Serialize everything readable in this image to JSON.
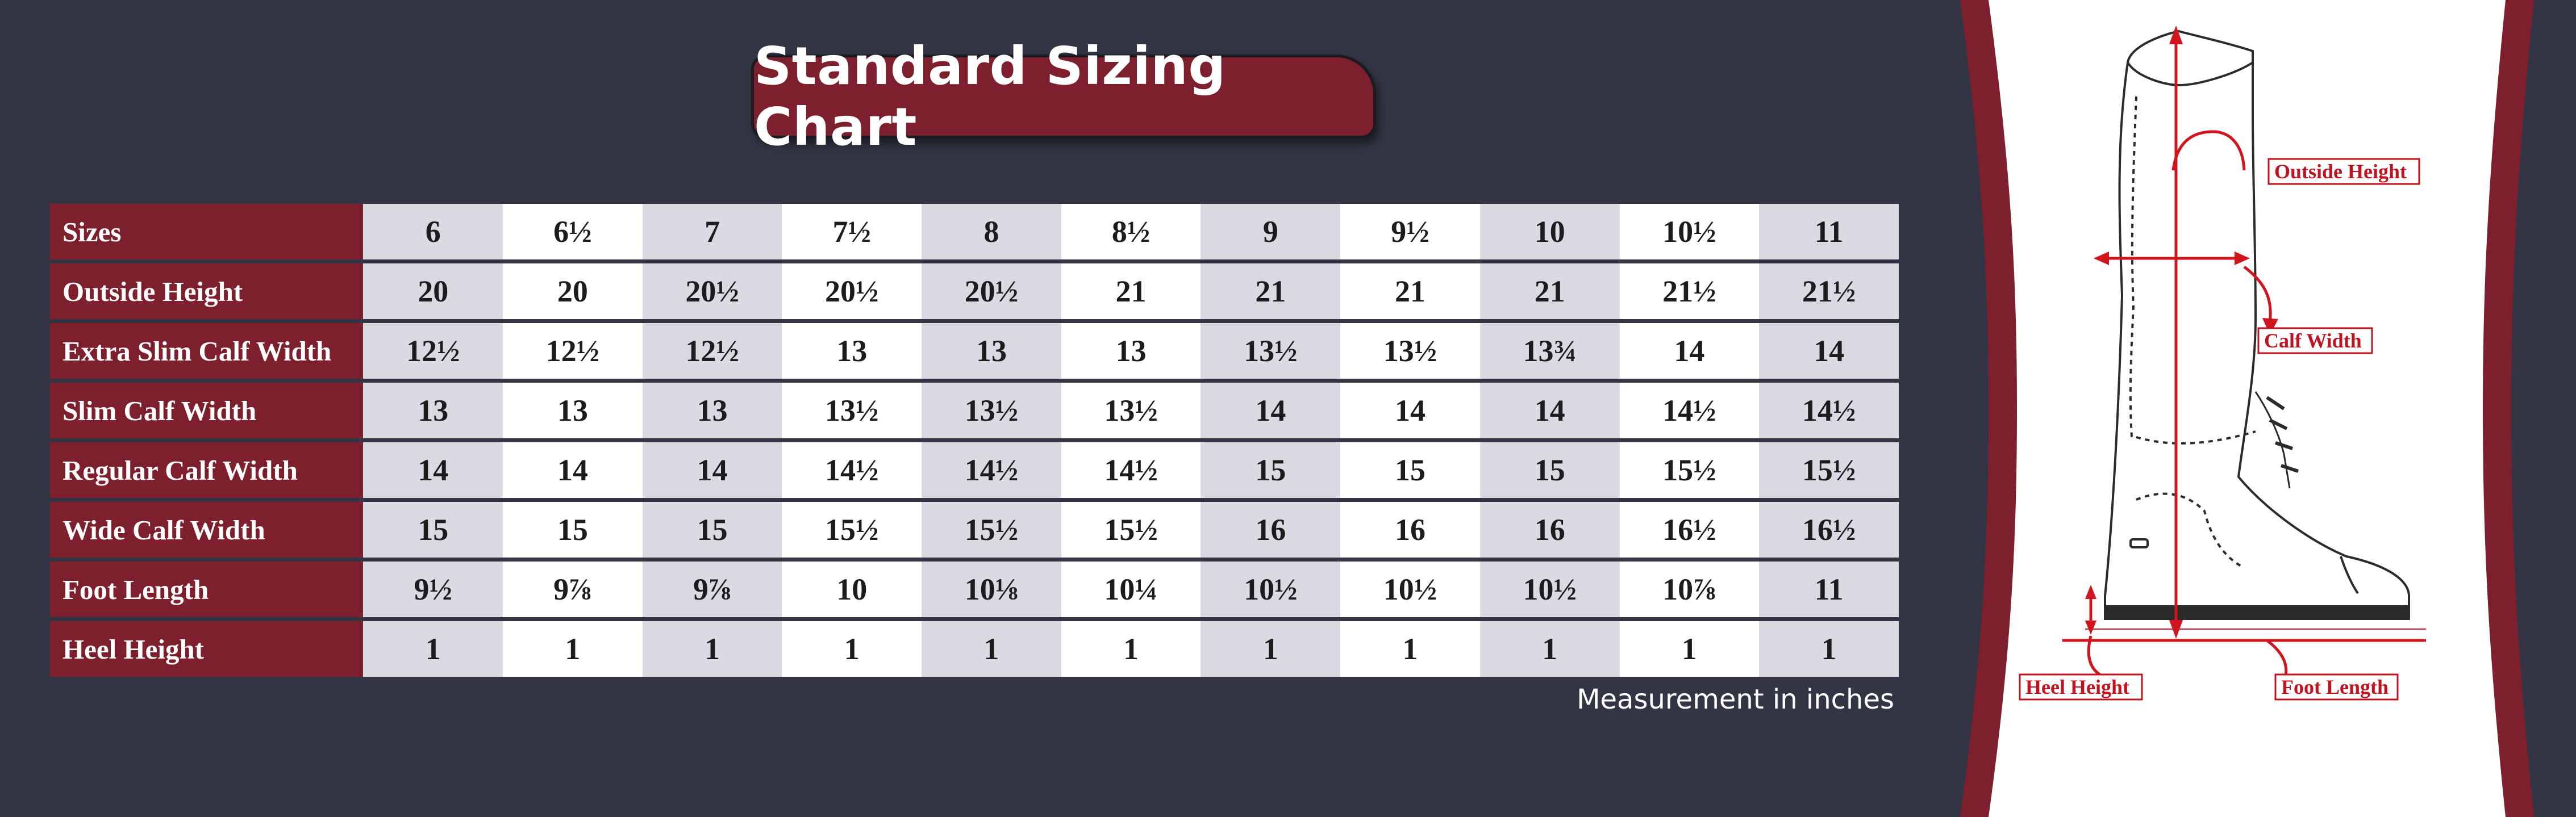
{
  "title": "Standard Sizing Chart",
  "measurement_note": "Measurement in inches",
  "table": {
    "rows": [
      {
        "label": "Sizes",
        "values": [
          "6",
          "6½",
          "7",
          "7½",
          "8",
          "8½",
          "9",
          "9½",
          "10",
          "10½",
          "11"
        ]
      },
      {
        "label": "Outside Height",
        "values": [
          "20",
          "20",
          "20½",
          "20½",
          "20½",
          "21",
          "21",
          "21",
          "21",
          "21½",
          "21½"
        ]
      },
      {
        "label": "Extra Slim Calf Width",
        "values": [
          "12½",
          "12½",
          "12½",
          "13",
          "13",
          "13",
          "13½",
          "13½",
          "13¾",
          "14",
          "14"
        ]
      },
      {
        "label": "Slim Calf Width",
        "values": [
          "13",
          "13",
          "13",
          "13½",
          "13½",
          "13½",
          "14",
          "14",
          "14",
          "14½",
          "14½"
        ]
      },
      {
        "label": "Regular Calf Width",
        "values": [
          "14",
          "14",
          "14",
          "14½",
          "14½",
          "14½",
          "15",
          "15",
          "15",
          "15½",
          "15½"
        ]
      },
      {
        "label": "Wide Calf Width",
        "values": [
          "15",
          "15",
          "15",
          "15½",
          "15½",
          "15½",
          "16",
          "16",
          "16",
          "16½",
          "16½"
        ]
      },
      {
        "label": "Foot Length",
        "values": [
          "9½",
          "9⅞",
          "9⅞",
          "10",
          "10⅛",
          "10¼",
          "10½",
          "10½",
          "10½",
          "10⅞",
          "11"
        ]
      },
      {
        "label": "Heel Height",
        "values": [
          "1",
          "1",
          "1",
          "1",
          "1",
          "1",
          "1",
          "1",
          "1",
          "1",
          "1"
        ]
      }
    ]
  },
  "boot_labels": {
    "outside_height": "Outside Height",
    "calf_width": "Calf Width",
    "heel_height": "Heel Height",
    "foot_length": "Foot Length"
  },
  "colors": {
    "background": "#333545",
    "accent": "#7d1f2c",
    "alt_cell": "#dbdae3",
    "measure_red": "#d1151f"
  }
}
